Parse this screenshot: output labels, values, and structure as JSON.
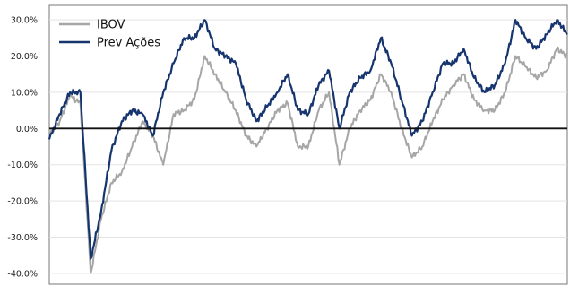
{
  "chart_data": {
    "type": "line",
    "title": "",
    "xlabel": "",
    "ylabel": "",
    "y_unit": "%",
    "ylim": [
      -43,
      34
    ],
    "yticks": [
      "30.0%",
      "20.0%",
      "10.0%",
      "0.0%",
      "-10.0%",
      "-20.0%",
      "-30.0%",
      "-40.0%"
    ],
    "ytick_values": [
      30,
      20,
      10,
      0,
      -10,
      -20,
      -30,
      -40
    ],
    "grid": "horizontal",
    "zero_line": true,
    "legend_position": "top-left",
    "x": [
      0,
      0.02,
      0.04,
      0.06,
      0.08,
      0.1,
      0.12,
      0.14,
      0.16,
      0.18,
      0.2,
      0.22,
      0.24,
      0.26,
      0.28,
      0.3,
      0.32,
      0.34,
      0.36,
      0.38,
      0.4,
      0.42,
      0.44,
      0.46,
      0.48,
      0.5,
      0.52,
      0.54,
      0.56,
      0.58,
      0.6,
      0.62,
      0.64,
      0.66,
      0.68,
      0.7,
      0.72,
      0.74,
      0.76,
      0.78,
      0.8,
      0.82,
      0.84,
      0.86,
      0.88,
      0.9,
      0.92,
      0.94,
      0.96,
      0.98,
      1
    ],
    "series": [
      {
        "name": "IBOV",
        "color": "#a6a6a6",
        "values": [
          -2,
          2,
          9,
          7,
          -40,
          -25,
          -15,
          -12,
          -5,
          2,
          -2,
          -10,
          4,
          5,
          8,
          20,
          15,
          10,
          5,
          -2,
          -5,
          0,
          5,
          7,
          -5,
          -5,
          5,
          10,
          -10,
          0,
          5,
          8,
          15,
          10,
          0,
          -8,
          -5,
          2,
          8,
          12,
          15,
          8,
          5,
          5,
          10,
          20,
          17,
          14,
          16,
          22,
          20
        ]
      },
      {
        "name": "Prev Ações",
        "color": "#16356e",
        "values": [
          -3,
          4,
          10,
          10,
          -36,
          -23,
          -6,
          2,
          5,
          4,
          -2,
          10,
          18,
          25,
          25,
          30,
          22,
          20,
          18,
          8,
          2,
          6,
          10,
          15,
          5,
          4,
          12,
          16,
          0,
          10,
          14,
          16,
          25,
          18,
          8,
          -2,
          2,
          10,
          18,
          18,
          22,
          14,
          10,
          12,
          18,
          30,
          25,
          22,
          26,
          30,
          26
        ]
      }
    ]
  }
}
